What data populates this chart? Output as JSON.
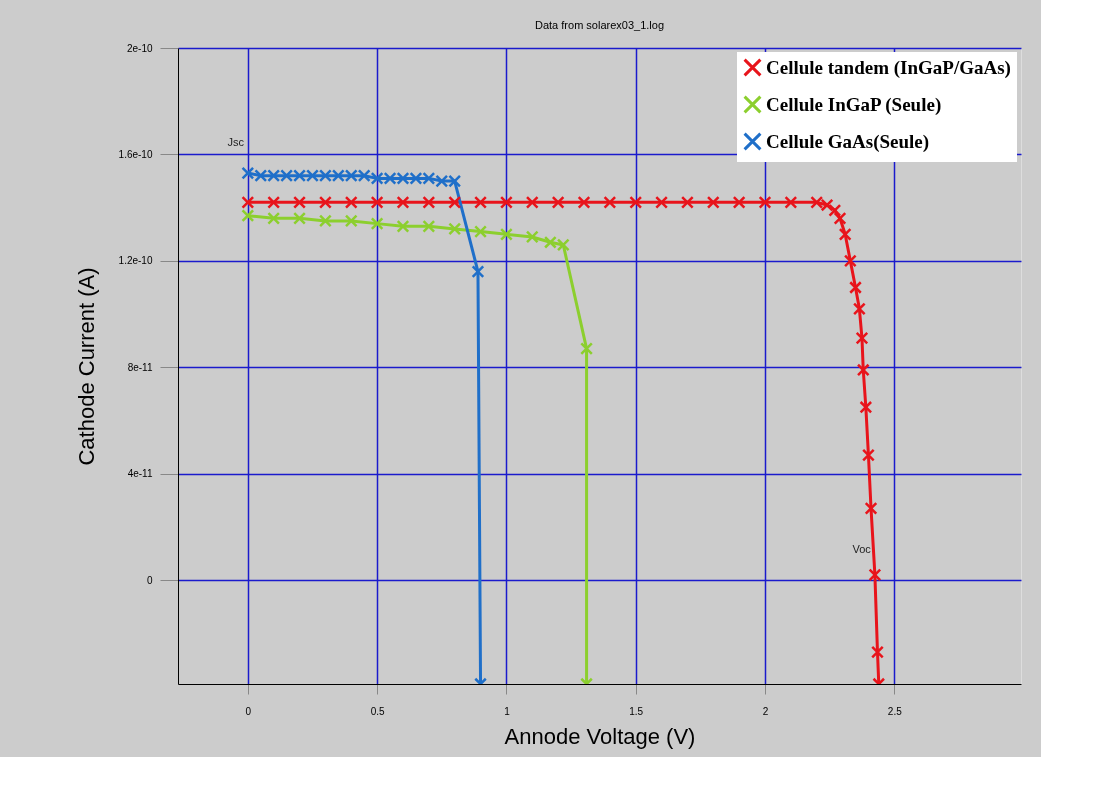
{
  "chart_data": {
    "type": "line",
    "title": "Data from solarex03_1.log",
    "xlabel": "Annode Voltage (V)",
    "ylabel": "Cathode Current (A)",
    "xlim": [
      -0.27,
      2.99
    ],
    "ylim": [
      -3.9e-11,
      2e-10
    ],
    "xticks": [
      0,
      0.5,
      1,
      1.5,
      2,
      2.5
    ],
    "yticks": [
      {
        "value": 0,
        "label": "0"
      },
      {
        "value": 4e-11,
        "label": "4e-11"
      },
      {
        "value": 8e-11,
        "label": "8e-11"
      },
      {
        "value": 1.2e-10,
        "label": "1.2e-10"
      },
      {
        "value": 1.6e-10,
        "label": "1.6e-10"
      },
      {
        "value": 2e-10,
        "label": "2e-10"
      }
    ],
    "grid": true,
    "legend": "top right",
    "marker": "cross",
    "line_style": "solid",
    "annotations": [
      {
        "text": "Jsc",
        "x": 0,
        "y": 1.53e-10
      },
      {
        "text": "Voc",
        "x": 2.42,
        "y": 0
      }
    ],
    "series": [
      {
        "name": "Cellule tandem (InGaP/GaAs)",
        "color": "#e8141b",
        "x": [
          0,
          0.1,
          0.2,
          0.3,
          0.4,
          0.5,
          0.6,
          0.7,
          0.8,
          0.9,
          1.0,
          1.1,
          1.2,
          1.3,
          1.4,
          1.5,
          1.6,
          1.7,
          1.8,
          1.9,
          2.0,
          2.1,
          2.2,
          2.24,
          2.27,
          2.29,
          2.31,
          2.33,
          2.35,
          2.365,
          2.375,
          2.38,
          2.39,
          2.4,
          2.41,
          2.425,
          2.435,
          2.44
        ],
        "values": [
          1.42e-10,
          1.42e-10,
          1.42e-10,
          1.42e-10,
          1.42e-10,
          1.42e-10,
          1.42e-10,
          1.42e-10,
          1.42e-10,
          1.42e-10,
          1.42e-10,
          1.42e-10,
          1.42e-10,
          1.42e-10,
          1.42e-10,
          1.42e-10,
          1.42e-10,
          1.42e-10,
          1.42e-10,
          1.42e-10,
          1.42e-10,
          1.42e-10,
          1.42e-10,
          1.41e-10,
          1.39e-10,
          1.36e-10,
          1.3e-10,
          1.2e-10,
          1.1e-10,
          1.02e-10,
          9.1e-11,
          7.9e-11,
          6.5e-11,
          4.7e-11,
          2.7e-11,
          2e-12,
          -2.7e-11,
          -3.9e-11
        ]
      },
      {
        "name": "Cellule InGaP (Seule)",
        "color": "#8ccf2e",
        "x": [
          0,
          0.1,
          0.2,
          0.3,
          0.4,
          0.5,
          0.6,
          0.7,
          0.8,
          0.9,
          1.0,
          1.1,
          1.17,
          1.22,
          1.31,
          1.31
        ],
        "values": [
          1.37e-10,
          1.36e-10,
          1.36e-10,
          1.35e-10,
          1.35e-10,
          1.34e-10,
          1.33e-10,
          1.33e-10,
          1.32e-10,
          1.31e-10,
          1.3e-10,
          1.29e-10,
          1.27e-10,
          1.26e-10,
          8.7e-11,
          -3.9e-11
        ]
      },
      {
        "name": "Cellule GaAs(Seule)",
        "color": "#1f6fc9",
        "x": [
          0,
          0.05,
          0.1,
          0.15,
          0.2,
          0.25,
          0.3,
          0.35,
          0.4,
          0.45,
          0.5,
          0.55,
          0.6,
          0.65,
          0.7,
          0.75,
          0.8,
          0.89,
          0.9
        ],
        "values": [
          1.53e-10,
          1.52e-10,
          1.52e-10,
          1.52e-10,
          1.52e-10,
          1.52e-10,
          1.52e-10,
          1.52e-10,
          1.52e-10,
          1.52e-10,
          1.51e-10,
          1.51e-10,
          1.51e-10,
          1.51e-10,
          1.51e-10,
          1.5e-10,
          1.5e-10,
          1.16e-10,
          -3.9e-11
        ]
      }
    ]
  }
}
